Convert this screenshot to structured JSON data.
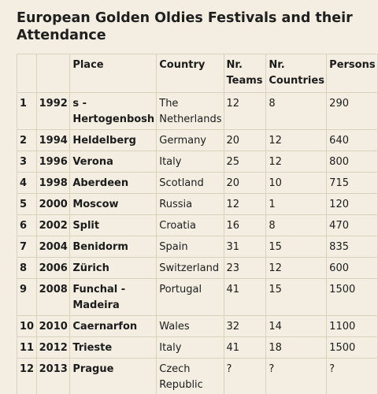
{
  "title": "European Golden Oldies Festivals and their Attendance",
  "table": {
    "headers": [
      "",
      "",
      "Place",
      "Country",
      "Nr. Teams",
      "Nr. Countries",
      "Persons"
    ],
    "rows": [
      {
        "n": "1",
        "year": "1992",
        "place": "s - Hertogenbosh",
        "country": "The Netherlands",
        "teams": "12",
        "countries": "8",
        "persons": "290"
      },
      {
        "n": "2",
        "year": "1994",
        "place": "Heldelberg",
        "country": "Germany",
        "teams": "20",
        "countries": "12",
        "persons": "640"
      },
      {
        "n": "3",
        "year": "1996",
        "place": "Verona",
        "country": "Italy",
        "teams": "25",
        "countries": "12",
        "persons": "800"
      },
      {
        "n": "4",
        "year": "1998",
        "place": "Aberdeen",
        "country": "Scotland",
        "teams": "20",
        "countries": "10",
        "persons": "715"
      },
      {
        "n": "5",
        "year": "2000",
        "place": "Moscow",
        "country": "Russia",
        "teams": "12",
        "countries": "1",
        "persons": "120"
      },
      {
        "n": "6",
        "year": "2002",
        "place": "Split",
        "country": "Croatia",
        "teams": "16",
        "countries": "8",
        "persons": "470"
      },
      {
        "n": "7",
        "year": "2004",
        "place": "Benidorm",
        "country": "Spain",
        "teams": "31",
        "countries": "15",
        "persons": "835"
      },
      {
        "n": "8",
        "year": "2006",
        "place": "Zürich",
        "country": "Switzerland",
        "teams": "23",
        "countries": "12",
        "persons": "600"
      },
      {
        "n": "9",
        "year": "2008",
        "place": "Funchal - Madeira",
        "country": "Portugal",
        "teams": "41",
        "countries": "15",
        "persons": "1500"
      },
      {
        "n": "10",
        "year": "2010",
        "place": "Caernarfon",
        "country": "Wales",
        "teams": "32",
        "countries": "14",
        "persons": "1100"
      },
      {
        "n": "11",
        "year": "2012",
        "place": "Trieste",
        "country": "Italy",
        "teams": "41",
        "countries": "18",
        "persons": "1500"
      },
      {
        "n": "12",
        "year": "2013",
        "place": "Prague",
        "country": "Czech Republic",
        "teams": "?",
        "countries": "?",
        "persons": "?"
      }
    ]
  }
}
